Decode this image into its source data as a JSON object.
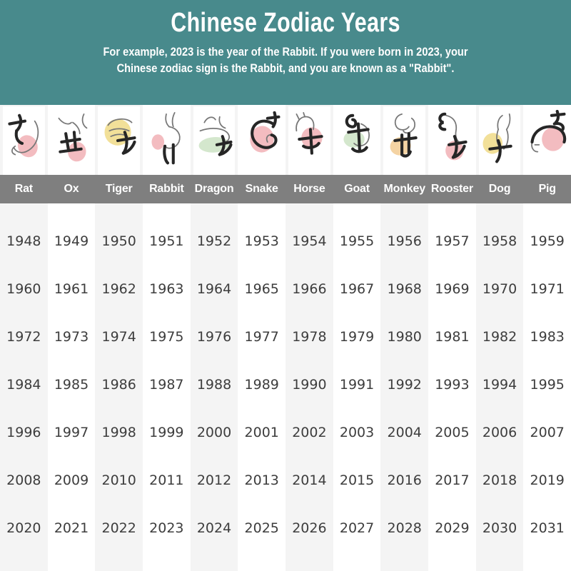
{
  "header": {
    "title": "Chinese Zodiac Years",
    "subtitle_line1": "For example, 2023 is the year of the Rabbit. If you were born in 2023, your",
    "subtitle_line2": "Chinese zodiac sign is the Rabbit, and you are known as a \"Rabbit\"."
  },
  "colors": {
    "header_bg": "#488a8c",
    "header_text": "#ffffff",
    "name_bar_bg": "#7f7f7f",
    "name_text": "#ffffff",
    "stripe": "#f4f4f4",
    "year_text": "#3d3d3d",
    "blob_pink": "#f3bcc0",
    "blob_yellow": "#f2e099",
    "blob_green": "#d4e7cd",
    "blob_orange": "#f4d3a3"
  },
  "zodiac_columns": [
    {
      "animal": "Rat",
      "blob_color": "#f3bcc0"
    },
    {
      "animal": "Ox",
      "blob_color": "#f3bcc0"
    },
    {
      "animal": "Tiger",
      "blob_color": "#f2e099"
    },
    {
      "animal": "Rabbit",
      "blob_color": "#f3bcc0"
    },
    {
      "animal": "Dragon",
      "blob_color": "#d4e7cd"
    },
    {
      "animal": "Snake",
      "blob_color": "#f3bcc0"
    },
    {
      "animal": "Horse",
      "blob_color": "#f3bcc0"
    },
    {
      "animal": "Goat",
      "blob_color": "#d4e7cd"
    },
    {
      "animal": "Monkey",
      "blob_color": "#f4d3a3"
    },
    {
      "animal": "Rooster",
      "blob_color": "#f3bcc0"
    },
    {
      "animal": "Dog",
      "blob_color": "#f2e099"
    },
    {
      "animal": "Pig",
      "blob_color": "#f3bcc0"
    }
  ],
  "chart_data": {
    "type": "table",
    "title": "Chinese Zodiac Years",
    "columns": [
      "Rat",
      "Ox",
      "Tiger",
      "Rabbit",
      "Dragon",
      "Snake",
      "Horse",
      "Goat",
      "Monkey",
      "Rooster",
      "Dog",
      "Pig"
    ],
    "rows": [
      [
        1948,
        1949,
        1950,
        1951,
        1952,
        1953,
        1954,
        1955,
        1956,
        1957,
        1958,
        1959
      ],
      [
        1960,
        1961,
        1962,
        1963,
        1964,
        1965,
        1966,
        1967,
        1968,
        1969,
        1970,
        1971
      ],
      [
        1972,
        1973,
        1974,
        1975,
        1976,
        1977,
        1978,
        1979,
        1980,
        1981,
        1982,
        1983
      ],
      [
        1984,
        1985,
        1986,
        1987,
        1988,
        1989,
        1990,
        1991,
        1992,
        1993,
        1994,
        1995
      ],
      [
        1996,
        1997,
        1998,
        1999,
        2000,
        2001,
        2002,
        2003,
        2004,
        2005,
        2006,
        2007
      ],
      [
        2008,
        2009,
        2010,
        2011,
        2012,
        2013,
        2014,
        2015,
        2016,
        2017,
        2018,
        2019
      ],
      [
        2020,
        2021,
        2022,
        2023,
        2024,
        2025,
        2026,
        2027,
        2028,
        2029,
        2030,
        2031
      ]
    ]
  }
}
